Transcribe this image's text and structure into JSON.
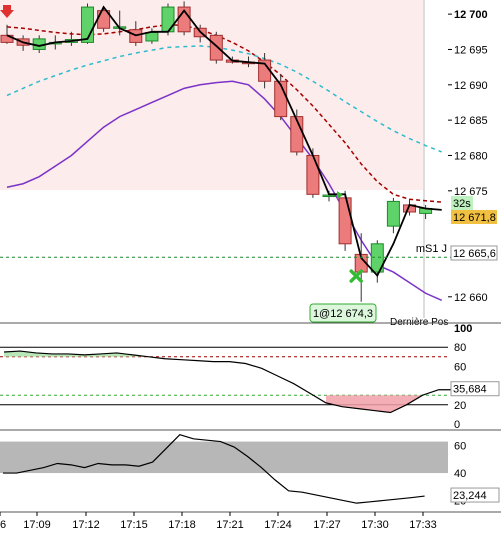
{
  "chart_data": [
    {
      "type": "candlestick",
      "panel": "price",
      "x_ticks": [
        "6",
        "17:09",
        "17:12",
        "17:15",
        "17:18",
        "17:21",
        "17:24",
        "17:27",
        "17:30",
        "17:33"
      ],
      "y_ticks": [
        "12 700",
        "12 695",
        "12 690",
        "12 685",
        "12 680",
        "12 675",
        "12 660"
      ],
      "ylim": [
        12657,
        12702
      ],
      "candles": [
        {
          "o": 12697.0,
          "h": 12698.5,
          "l": 12695.8,
          "c": 12696.0
        },
        {
          "o": 12696.5,
          "h": 12697.0,
          "l": 12694.8,
          "c": 12695.6
        },
        {
          "o": 12695.0,
          "h": 12697.0,
          "l": 12694.5,
          "c": 12696.5
        },
        {
          "o": 12695.8,
          "h": 12697.0,
          "l": 12695.0,
          "c": 12696.0
        },
        {
          "o": 12696.0,
          "h": 12697.5,
          "l": 12695.5,
          "c": 12696.4
        },
        {
          "o": 12696.0,
          "h": 12701.5,
          "l": 12695.8,
          "c": 12701.0
        },
        {
          "o": 12700.5,
          "h": 12701.0,
          "l": 12697.5,
          "c": 12698.0
        },
        {
          "o": 12698.0,
          "h": 12700.5,
          "l": 12697.0,
          "c": 12698.2
        },
        {
          "o": 12697.8,
          "h": 12699.0,
          "l": 12695.5,
          "c": 12696.0
        },
        {
          "o": 12696.2,
          "h": 12698.0,
          "l": 12695.8,
          "c": 12697.4
        },
        {
          "o": 12697.5,
          "h": 12701.5,
          "l": 12697.0,
          "c": 12701.0
        },
        {
          "o": 12701.0,
          "h": 12701.8,
          "l": 12697.0,
          "c": 12697.5
        },
        {
          "o": 12698.0,
          "h": 12698.5,
          "l": 12696.0,
          "c": 12696.8
        },
        {
          "o": 12697.0,
          "h": 12697.5,
          "l": 12693.0,
          "c": 12693.5
        },
        {
          "o": 12693.5,
          "h": 12694.0,
          "l": 12693.0,
          "c": 12693.2
        },
        {
          "o": 12693.2,
          "h": 12694.0,
          "l": 12692.5,
          "c": 12693.0
        },
        {
          "o": 12693.5,
          "h": 12694.5,
          "l": 12689.5,
          "c": 12690.5
        },
        {
          "o": 12690.5,
          "h": 12691.5,
          "l": 12685.0,
          "c": 12685.5
        },
        {
          "o": 12685.5,
          "h": 12686.5,
          "l": 12680.0,
          "c": 12680.5
        },
        {
          "o": 12680.0,
          "h": 12681.0,
          "l": 12674.0,
          "c": 12674.5
        },
        {
          "o": 12674.2,
          "h": 12675.0,
          "l": 12673.5,
          "c": 12674.4
        },
        {
          "o": 12674.0,
          "h": 12675.0,
          "l": 12666.5,
          "c": 12667.5
        },
        {
          "o": 12666.0,
          "h": 12669.0,
          "l": 12659.3,
          "c": 12663.5
        },
        {
          "o": 12663.5,
          "h": 12668.0,
          "l": 12662.0,
          "c": 12667.5
        },
        {
          "o": 12670.0,
          "h": 12674.0,
          "l": 12669.0,
          "c": 12673.5
        },
        {
          "o": 12673.0,
          "h": 12673.8,
          "l": 12671.5,
          "c": 12672.0
        },
        {
          "o": 12671.8,
          "h": 12673.0,
          "l": 12671.0,
          "c": 12672.5
        }
      ],
      "line_series": [
        {
          "style": "solid",
          "color": "#000000",
          "values": [
            12697.0,
            12696.0,
            12695.5,
            12696.0,
            12696.2,
            12696.5,
            12701.0,
            12698.0,
            12697.0,
            12697.5,
            12697.5,
            12700.5,
            12697.5,
            12695.5,
            12693.4,
            12693.2,
            12693.0,
            12690.0,
            12685.0,
            12680.0,
            12674.5,
            12674.5,
            12665.5,
            12663.0,
            12667.5,
            12673.0,
            12672.5,
            12672.3
          ]
        },
        {
          "style": "dashed",
          "color": "#a40000",
          "values": [
            12698.2,
            12698.0,
            12697.7,
            12697.4,
            12697.2,
            12697.1,
            12697.2,
            12697.5,
            12697.8,
            12698.2,
            12698.5,
            12698.4,
            12697.8,
            12697.0,
            12696.0,
            12694.8,
            12693.2,
            12691.4,
            12689.3,
            12687.0,
            12684.4,
            12681.8,
            12678.8,
            12676.3,
            12674.5,
            12673.8,
            12673.6,
            12673.4
          ]
        },
        {
          "style": "dashed",
          "color": "#2bbccc",
          "values": [
            12688.5,
            12689.5,
            12690.5,
            12691.3,
            12692.1,
            12692.8,
            12693.4,
            12694.0,
            12694.5,
            12694.9,
            12695.3,
            12695.4,
            12695.5,
            12695.3,
            12694.9,
            12694.4,
            12693.7,
            12692.9,
            12691.8,
            12690.5,
            12689.1,
            12687.6,
            12686.2,
            12684.8,
            12683.5,
            12682.4,
            12681.4,
            12680.5
          ]
        },
        {
          "style": "solid",
          "color": "#7a32c8",
          "band": "upper",
          "values": [
            12707.0,
            12706.0,
            12705.5,
            12705.5,
            12706.0,
            12706.5,
            12707.5,
            12708.5,
            12709.5,
            12710.0,
            12710.2,
            12710.5,
            12710.0,
            12709.0,
            12707.0,
            12705.0
          ]
        },
        {
          "style": "solid",
          "color": "#7a32c8",
          "band": "lower",
          "values": [
            12675.5,
            12676.0,
            12677.0,
            12678.5,
            12680.0,
            12682.0,
            12684.0,
            12685.5,
            12686.5,
            12687.5,
            12688.5,
            12689.5,
            12690.0,
            12690.3,
            12690.5,
            12690.0,
            12688.0,
            12685.5,
            12682.5,
            12679.5,
            12676.0,
            12672.0,
            12668.0,
            12664.5,
            12663.5,
            12662.0,
            12660.5,
            12659.5
          ]
        }
      ],
      "horizontal_levels": [
        {
          "label": "mS1 J",
          "value": "12 665,6",
          "y": 12665.6,
          "color": "#1b8a2a"
        }
      ],
      "markers": [
        {
          "type": "arrow-down",
          "color": "#e03030",
          "at_candle": 0
        },
        {
          "type": "x-mark",
          "color": "#33bb33",
          "at_candle": 22
        },
        {
          "type": "arrow-right",
          "color": "#33bb33",
          "at_candle": 20
        }
      ],
      "price_tags": [
        {
          "text": "32s",
          "bg": "#bff0bf"
        },
        {
          "text": "12 671,8",
          "bg": "#f2c040"
        },
        {
          "text": "12 665,6",
          "bg": "#ffffff"
        }
      ],
      "annotation": {
        "text": "1@12 674,3",
        "bg": "#dcf7dc",
        "border": "#33aa33"
      },
      "partial_text": "Dernière Pos"
    },
    {
      "type": "line",
      "panel": "oscillator",
      "y_ticks": [
        "100",
        "80",
        "60",
        "40",
        "20",
        "0"
      ],
      "ylim": [
        0,
        100
      ],
      "reference_lines": [
        {
          "value": 80,
          "color": "#000000",
          "style": "solid"
        },
        {
          "value": 70,
          "color": "#a40000",
          "style": "dashed"
        },
        {
          "value": 30,
          "color": "#33aa33",
          "style": "dashed"
        },
        {
          "value": 20,
          "color": "#000000",
          "style": "solid"
        }
      ],
      "current_value": "35,684",
      "values": [
        75,
        76,
        74,
        73,
        73,
        72,
        73,
        74,
        72,
        70,
        68,
        67,
        66,
        65,
        65,
        63,
        58,
        50,
        42,
        32,
        22,
        18,
        16,
        14,
        12,
        20,
        30,
        35.7,
        35.7
      ]
    },
    {
      "type": "line",
      "panel": "oscillator2",
      "y_ticks": [
        "60",
        "40",
        "20"
      ],
      "ylim": [
        13,
        70
      ],
      "band": [
        40,
        63
      ],
      "current_value": "23,244",
      "values": [
        40,
        40,
        42,
        44,
        47,
        46,
        44,
        47,
        46,
        46,
        45,
        48,
        58,
        68,
        65,
        64,
        63,
        59,
        52,
        44,
        35,
        27,
        26,
        24,
        22,
        20,
        18,
        19,
        20,
        21,
        22,
        23.2
      ]
    }
  ]
}
